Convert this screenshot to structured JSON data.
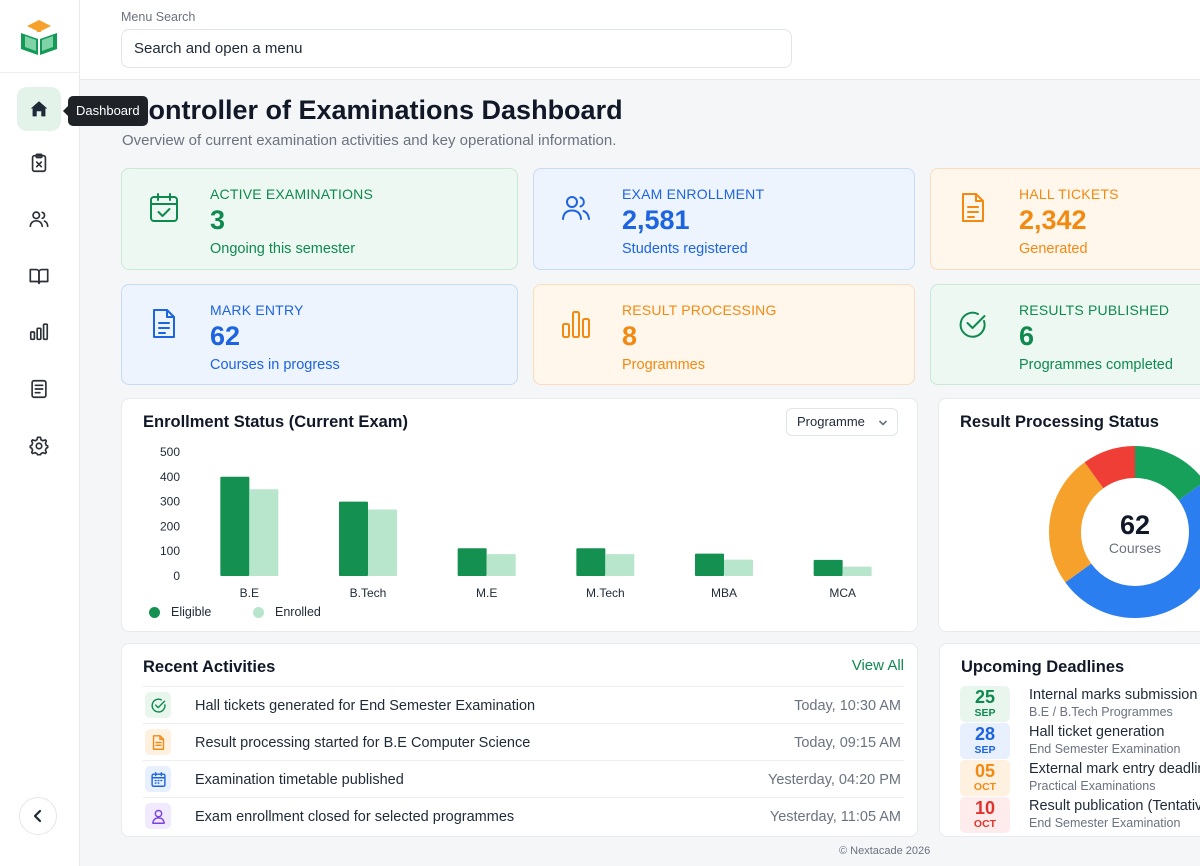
{
  "sidebar": {
    "logo": "graduation-book-logo",
    "items": [
      {
        "name": "home",
        "icon": "home-icon",
        "tooltip": "Dashboard",
        "active": true
      },
      {
        "name": "exam",
        "icon": "clipboard-x-icon"
      },
      {
        "name": "users",
        "icon": "users-icon"
      },
      {
        "name": "courses",
        "icon": "book-open-icon"
      },
      {
        "name": "reports",
        "icon": "bar-chart-icon"
      },
      {
        "name": "documents",
        "icon": "file-text-icon"
      },
      {
        "name": "settings",
        "icon": "gear-icon"
      }
    ],
    "collapse_icon": "chevron-left-icon"
  },
  "search": {
    "label": "Menu Search",
    "placeholder": "Search and open a menu"
  },
  "page": {
    "title": "Controller of Examinations Dashboard",
    "subtitle": "Overview of current examination activities and key operational information."
  },
  "stats": [
    {
      "label": "ACTIVE EXAMINATIONS",
      "value": "3",
      "sub": "Ongoing this semester",
      "color": "#0f8a4f",
      "icon": "calendar-check-icon"
    },
    {
      "label": "EXAM ENROLLMENT",
      "value": "2,581",
      "sub": "Students registered",
      "color": "#1d64e0",
      "icon": "users-icon"
    },
    {
      "label": "HALL TICKETS",
      "value": "2,342",
      "sub": "Generated",
      "color": "#f28a12",
      "icon": "file-text-icon"
    },
    {
      "label": "MARK ENTRY",
      "value": "62",
      "sub": "Courses in progress",
      "color": "#1d64e0",
      "icon": "document-icon"
    },
    {
      "label": "RESULT PROCESSING",
      "value": "8",
      "sub": "Programmes",
      "color": "#f28a12",
      "icon": "bar-chart-icon"
    },
    {
      "label": "RESULTS PUBLISHED",
      "value": "6",
      "sub": "Programmes completed",
      "color": "#0f8a4f",
      "icon": "check-circle-icon"
    }
  ],
  "enrollment": {
    "title": "Enrollment Status (Current Exam)",
    "filter": "Programme"
  },
  "chart_data": [
    {
      "type": "bar",
      "categories": [
        "B.E",
        "B.Tech",
        "M.E",
        "M.Tech",
        "MBA",
        "MCA"
      ],
      "series": [
        {
          "name": "Eligible",
          "values": [
            400,
            300,
            112,
            112,
            90,
            65
          ],
          "color": "#149151"
        },
        {
          "name": "Enrolled",
          "values": [
            350,
            268,
            88,
            88,
            66,
            38
          ],
          "color": "#b7e6cc"
        }
      ],
      "y_ticks": [
        0,
        100,
        200,
        300,
        400,
        500
      ],
      "ylim": [
        0,
        500
      ],
      "grid": false,
      "legend": "bottom-left"
    },
    {
      "type": "pie",
      "title": "Result Processing Status",
      "center_value": "62",
      "center_label": "Courses",
      "segments": [
        {
          "value": 0.15,
          "color": "#16a05a"
        },
        {
          "value": 0.5,
          "color": "#2b7ef0"
        },
        {
          "value": 0.25,
          "color": "#f6a12b"
        },
        {
          "value": 0.1,
          "color": "#ef3e36"
        }
      ]
    }
  ],
  "activities": {
    "title": "Recent Activities",
    "view_all": "View All",
    "items": [
      {
        "icon": "check-circle-icon",
        "color": "#0f8a4f",
        "bg": "#e8f6ee",
        "text": "Hall tickets generated for End Semester Examination",
        "time": "Today, 10:30 AM"
      },
      {
        "icon": "file-text-icon",
        "color": "#f28a12",
        "bg": "#fff1e0",
        "text": "Result processing started for B.E Computer Science",
        "time": "Today, 09:15 AM"
      },
      {
        "icon": "calendar-icon",
        "color": "#1d64e0",
        "bg": "#e8f0fd",
        "text": "Examination timetable published",
        "time": "Yesterday, 04:20 PM"
      },
      {
        "icon": "user-icon",
        "color": "#7b3fe4",
        "bg": "#f1eafd",
        "text": "Exam enrollment closed for selected programmes",
        "time": "Yesterday, 11:05 AM"
      }
    ]
  },
  "deadlines": {
    "title": "Upcoming Deadlines",
    "items": [
      {
        "day": "25",
        "month": "SEP",
        "color": "#0f8a4f",
        "bg": "#e8f6ee",
        "title": "Internal marks submission",
        "sub": "B.E / B.Tech Programmes"
      },
      {
        "day": "28",
        "month": "SEP",
        "color": "#1d64e0",
        "bg": "#e8f0fd",
        "title": "Hall ticket generation",
        "sub": "End Semester Examination"
      },
      {
        "day": "05",
        "month": "OCT",
        "color": "#f28a12",
        "bg": "#fff1e0",
        "title": "External mark entry deadline",
        "sub": "Practical Examinations"
      },
      {
        "day": "10",
        "month": "OCT",
        "color": "#e0332b",
        "bg": "#fdeceb",
        "title": "Result publication (Tentative)",
        "sub": "End Semester Examination"
      }
    ]
  },
  "footer": "© Nextacade 2026"
}
